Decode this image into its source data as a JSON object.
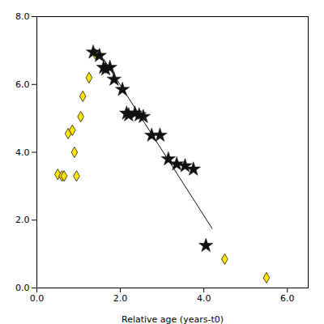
{
  "chart_data": {
    "type": "scatter",
    "xlabel": "Relative age (years-t0)",
    "xlim": [
      0.0,
      6.5
    ],
    "ylim": [
      0.0,
      8.0
    ],
    "xticks": [
      {
        "value": 0.0,
        "label": "0.0"
      },
      {
        "value": 2.0,
        "label": "2.0"
      },
      {
        "value": 4.0,
        "label": "4.0"
      },
      {
        "value": 6.0,
        "label": "6.0"
      }
    ],
    "yticks": [
      {
        "value": 0.0,
        "label": "0.0"
      },
      {
        "value": 2.0,
        "label": "2.0"
      },
      {
        "value": 4.0,
        "label": "4.0"
      },
      {
        "value": 6.0,
        "label": "6.0"
      },
      {
        "value": 8.0,
        "label": "8.0"
      }
    ],
    "grid": false,
    "series": [
      {
        "type": "scatter",
        "marker": "diamond",
        "color": "#FFE500",
        "x": [
          0.5,
          0.6,
          0.65,
          0.75,
          0.85,
          0.9,
          0.95,
          1.05,
          1.1,
          1.25,
          1.4,
          4.5,
          5.5
        ],
        "values": [
          3.35,
          3.3,
          3.3,
          4.55,
          4.65,
          4.0,
          3.3,
          5.05,
          5.65,
          6.2,
          6.9,
          0.85,
          0.3
        ]
      },
      {
        "type": "scatter",
        "marker": "star",
        "color": "#111111",
        "x": [
          1.35,
          1.5,
          1.6,
          1.65,
          1.75,
          1.85,
          2.05,
          2.15,
          2.2,
          2.35,
          2.45,
          2.55,
          2.75,
          2.95,
          3.15,
          3.35,
          3.55,
          3.75,
          4.05
        ],
        "values": [
          6.95,
          6.85,
          6.5,
          6.45,
          6.5,
          6.15,
          5.85,
          5.15,
          5.1,
          5.15,
          5.1,
          5.05,
          4.5,
          4.5,
          3.8,
          3.65,
          3.6,
          3.5,
          1.25
        ]
      },
      {
        "type": "line",
        "line_style": "solid",
        "color": "#111111",
        "x": [
          1.6,
          4.2
        ],
        "values": [
          6.75,
          1.75
        ]
      }
    ]
  }
}
